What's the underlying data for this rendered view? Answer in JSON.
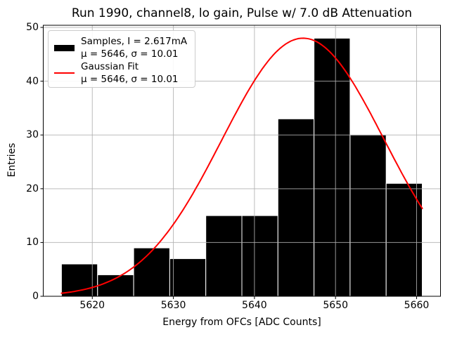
{
  "chart_data": {
    "type": "bar",
    "subtype": "histogram-with-fit",
    "title": "Run 1990, channel8, lo gain, Pulse w/ 7.0 dB Attenuation",
    "xlabel": "Energy from OFCs [ADC Counts]",
    "ylabel": "Entries",
    "bin_edges": [
      5616.2,
      5620.65,
      5625.1,
      5629.55,
      5634.0,
      5638.45,
      5642.9,
      5647.35,
      5651.8,
      5656.25,
      5660.7
    ],
    "counts": [
      6,
      4,
      9,
      7,
      15,
      15,
      33,
      48,
      30,
      21
    ],
    "gaussian_fit": {
      "mu": 5646,
      "sigma": 10.01,
      "amplitude": 48,
      "x_start": 5616.2,
      "x_end": 5660.7
    },
    "xlim": [
      5613.95,
      5662.95
    ],
    "ylim": [
      0,
      50.4
    ],
    "xticks": [
      5620,
      5630,
      5640,
      5650,
      5660
    ],
    "yticks": [
      0,
      10,
      20,
      30,
      40,
      50
    ],
    "grid": true,
    "grid_on_top": true,
    "legend_position": "upper left",
    "colors": {
      "bars": "#000000",
      "bar_edge": "#ffffff",
      "fit_line": "#ff0000",
      "grid": "#b0b0b0",
      "spine": "#000000",
      "text": "#000000",
      "legend_border": "#cccccc"
    },
    "legend": {
      "entries": [
        {
          "swatch": "black-bar",
          "line1": "Samples, I = 2.617mA",
          "line2": "μ = 5646, σ = 10.01"
        },
        {
          "swatch": "red-line",
          "line1": "Gaussian Fit",
          "line2": "μ = 5646, σ = 10.01"
        }
      ]
    }
  }
}
